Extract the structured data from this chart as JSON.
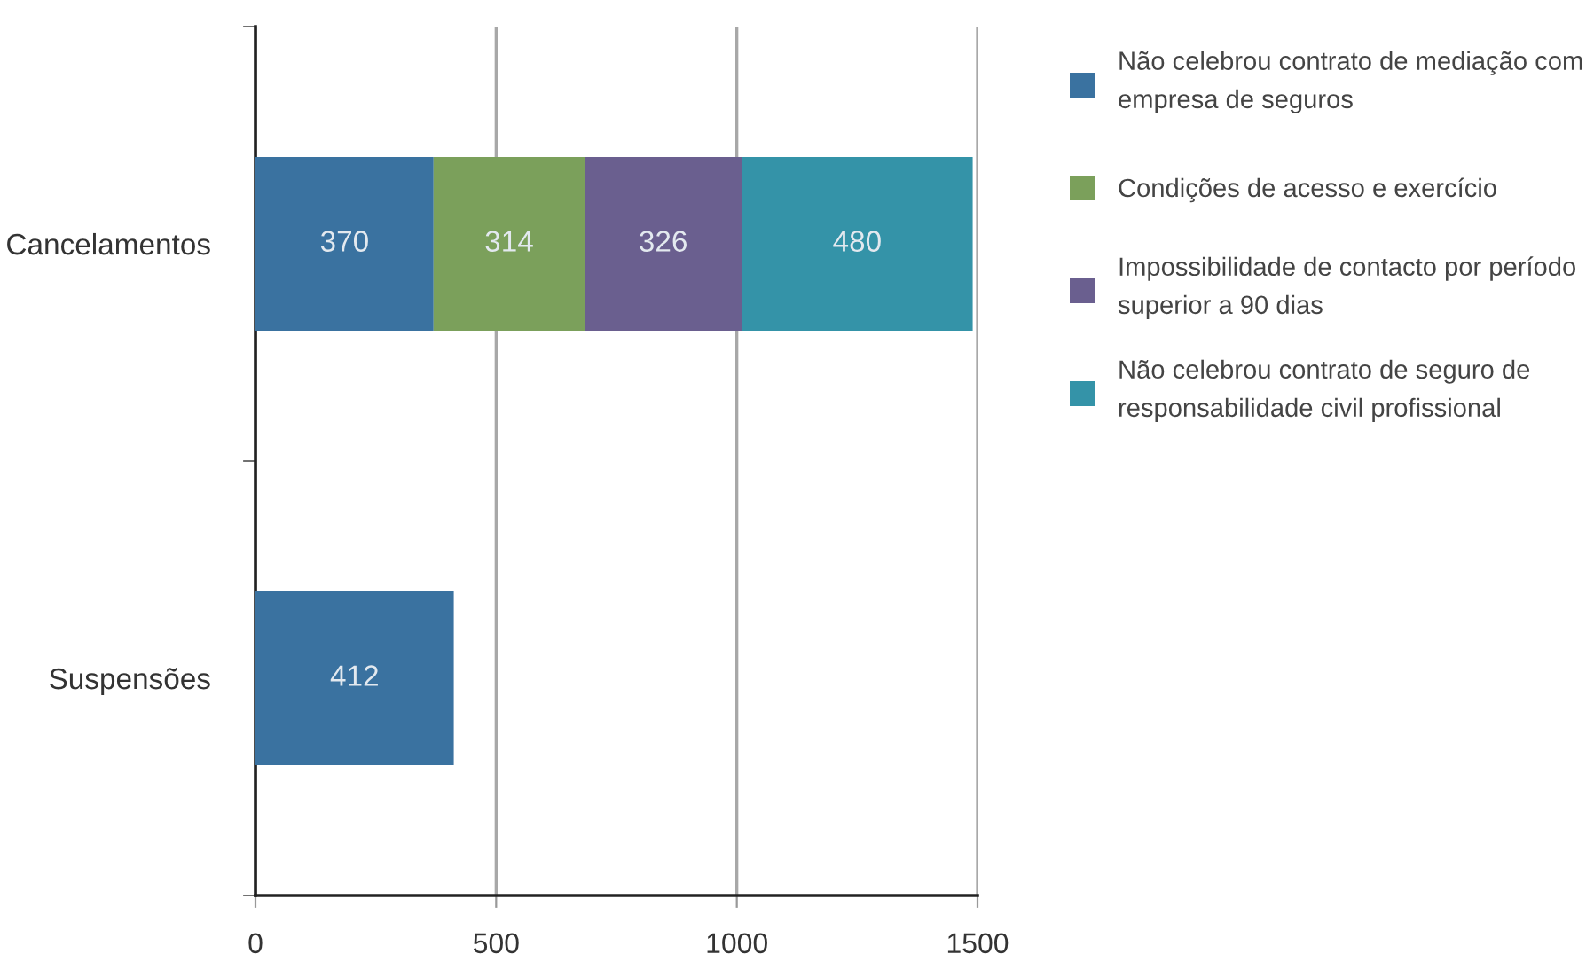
{
  "chart_data": {
    "type": "bar",
    "orientation": "horizontal",
    "stacked": true,
    "categories": [
      "Cancelamentos",
      "Suspensões"
    ],
    "series": [
      {
        "name": "Não celebrou contrato de mediação com empresa de seguros",
        "color": "#3a72a0",
        "values": [
          370,
          412
        ]
      },
      {
        "name": "Condições de acesso e exercício",
        "color": "#7ba05b",
        "values": [
          314,
          null
        ]
      },
      {
        "name": "Impossibilidade de contacto por período superior a 90 dias",
        "color": "#6a5f8f",
        "values": [
          326,
          null
        ]
      },
      {
        "name": "Não celebrou contrato de seguro de responsabilidade civil profissional",
        "color": "#3493a8",
        "values": [
          480,
          null
        ]
      }
    ],
    "xlim": [
      0,
      1500
    ],
    "xticks": [
      0,
      500,
      1000,
      1500
    ],
    "data_labels": true,
    "grid": "x",
    "legend": "right"
  }
}
